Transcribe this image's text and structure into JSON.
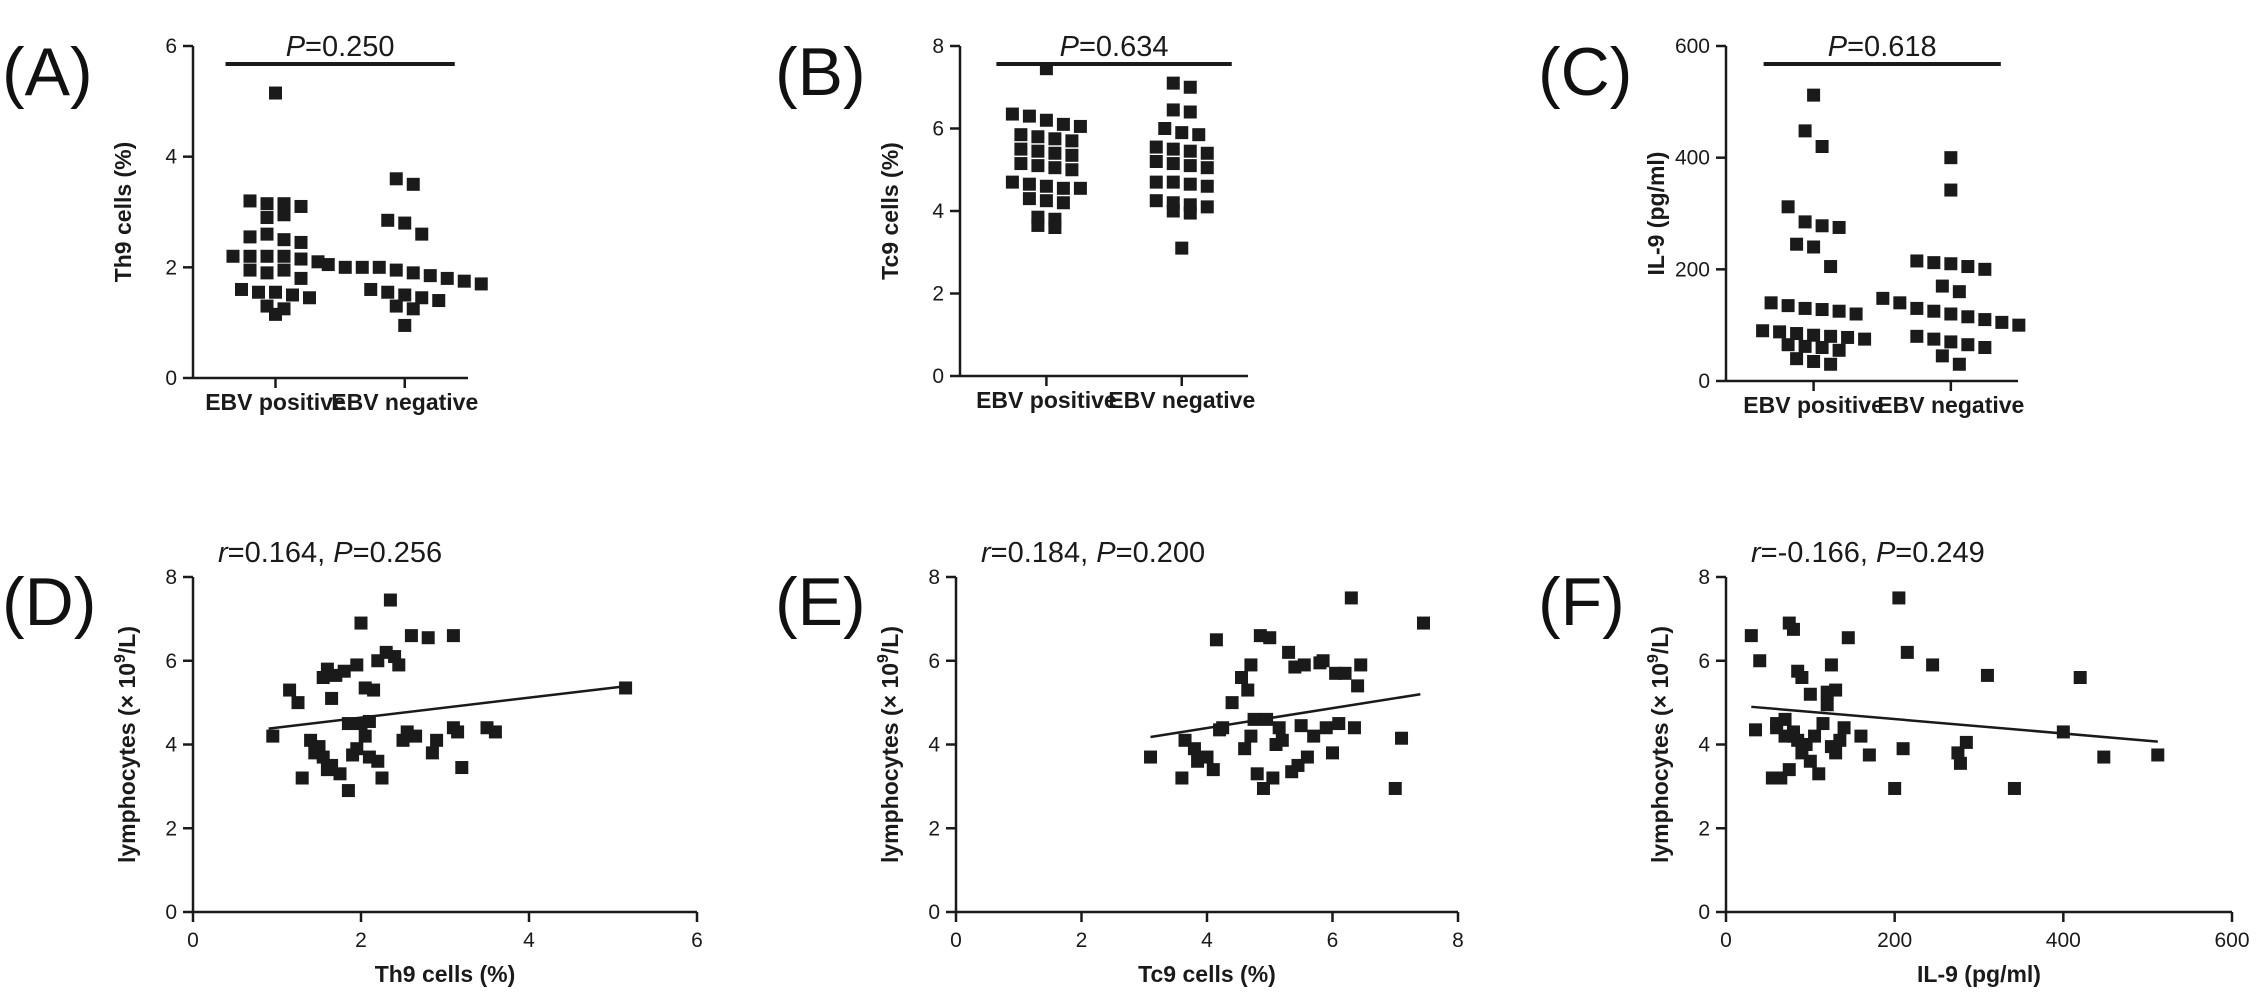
{
  "colors": {
    "marker": "#1a1a1a",
    "axis": "#1a1a1a",
    "background": "#ffffff"
  },
  "panel_letters": [
    "(A)",
    "(B)",
    "(C)",
    "(D)",
    "(E)",
    "(F)"
  ],
  "chart_data": [
    {
      "panel": "(A)",
      "type": "scatter",
      "subtype": "dot-plot",
      "ylabel": "Th9 cells (%)",
      "ylim": [
        0,
        6
      ],
      "yticks": [
        "0",
        "2",
        "4",
        "6"
      ],
      "categories": [
        "EBV positive",
        "EBV negative"
      ],
      "annotation": {
        "p_label": "P",
        "p_value": "=0.250"
      },
      "points": [
        [
          [
            5.15
          ],
          [
            3.2,
            3.15,
            3.15,
            3.1
          ],
          [
            2.9,
            2.95
          ],
          [
            2.55,
            2.6,
            2.5,
            2.45
          ],
          [
            2.2,
            2.2,
            2.2,
            2.2,
            2.15,
            2.1
          ],
          [
            1.95,
            1.9,
            1.95,
            1.8
          ],
          [
            1.6,
            1.55,
            1.55,
            1.5,
            1.45
          ],
          [
            1.3,
            1.25
          ],
          [
            1.15
          ]
        ],
        [
          [
            3.6,
            3.5
          ],
          [
            2.85,
            2.8,
            2.6
          ],
          [
            2.05,
            2.0,
            2.0,
            2.0,
            1.95,
            1.9,
            1.85,
            1.8,
            1.75,
            1.7
          ],
          [
            1.6,
            1.55,
            1.5,
            1.45,
            1.4
          ],
          [
            1.3,
            1.25
          ],
          [
            0.95
          ]
        ]
      ]
    },
    {
      "panel": "(B)",
      "type": "scatter",
      "subtype": "dot-plot",
      "ylabel": "Tc9 cells (%)",
      "ylim": [
        0,
        8
      ],
      "yticks": [
        "0",
        "2",
        "4",
        "6",
        "8"
      ],
      "categories": [
        "EBV positive",
        "EBV negative"
      ],
      "annotation": {
        "p_label": "P",
        "p_value": "=0.634"
      },
      "points": [
        [
          [
            7.45
          ],
          [
            6.35,
            6.3,
            6.2,
            6.1,
            6.05
          ],
          [
            5.85,
            5.8,
            5.75,
            5.7
          ],
          [
            5.5,
            5.45,
            5.4,
            5.35
          ],
          [
            5.15,
            5.1,
            5.05,
            5.0
          ],
          [
            4.7,
            4.65,
            4.6,
            4.55,
            4.55
          ],
          [
            4.3,
            4.25,
            4.2
          ],
          [
            3.85,
            3.8
          ],
          [
            3.65,
            3.6
          ]
        ],
        [
          [
            7.1,
            7.0
          ],
          [
            6.45,
            6.4
          ],
          [
            6.0,
            5.9,
            5.85
          ],
          [
            5.55,
            5.5,
            5.45,
            5.4
          ],
          [
            5.2,
            5.15,
            5.1,
            5.05
          ],
          [
            4.7,
            4.7,
            4.65,
            4.6
          ],
          [
            4.25,
            4.2,
            4.15,
            4.1
          ],
          [
            4.0,
            3.95
          ],
          [
            3.1
          ]
        ]
      ]
    },
    {
      "panel": "(C)",
      "type": "scatter",
      "subtype": "dot-plot",
      "ylabel": "IL-9 (pg/ml)",
      "ylim": [
        0,
        600
      ],
      "yticks": [
        "0",
        "200",
        "400",
        "600"
      ],
      "categories": [
        "EBV positive",
        "EBV negative"
      ],
      "annotation": {
        "p_label": "P",
        "p_value": "=0.618"
      },
      "points": [
        [
          [
            512
          ],
          [
            448,
            420
          ],
          [
            312,
            285,
            278,
            275
          ],
          [
            245,
            240,
            205
          ],
          [
            140,
            135,
            130,
            128,
            125,
            120
          ],
          [
            90,
            88,
            85,
            82,
            80,
            78,
            75
          ],
          [
            65,
            62,
            60,
            55
          ],
          [
            40,
            35,
            30
          ]
        ],
        [
          [
            400
          ],
          [
            342
          ],
          [
            215,
            212,
            210,
            205,
            200
          ],
          [
            170,
            160
          ],
          [
            148,
            140,
            130,
            125,
            120,
            115,
            110,
            105,
            100
          ],
          [
            80,
            75,
            70,
            65,
            60
          ],
          [
            45,
            30
          ]
        ]
      ]
    },
    {
      "panel": "(D)",
      "type": "scatter",
      "with_regression": true,
      "xlabel": "Th9 cells (%)",
      "ylabel_prefix": "lymphocytes (× 10",
      "ylabel_sup": "9",
      "ylabel_suffix": "/L)",
      "xlim": [
        0,
        6
      ],
      "ylim": [
        0,
        8
      ],
      "xticks": [
        "0",
        "2",
        "4",
        "6"
      ],
      "yticks": [
        "0",
        "2",
        "4",
        "6",
        "8"
      ],
      "annotation": {
        "r_label": "r",
        "r_value": "=0.164, ",
        "p_label": "P",
        "p_value": "=0.256"
      },
      "regression": {
        "x": [
          0.9,
          5.1
        ],
        "y": [
          4.38,
          5.38
        ]
      },
      "x": [
        0.95,
        1.15,
        1.25,
        1.3,
        1.4,
        1.45,
        1.5,
        1.55,
        1.55,
        1.6,
        1.6,
        1.65,
        1.65,
        1.7,
        1.75,
        1.8,
        1.85,
        1.85,
        1.9,
        1.95,
        1.95,
        2.0,
        2.0,
        2.05,
        2.05,
        2.1,
        2.1,
        2.15,
        2.2,
        2.2,
        2.25,
        2.3,
        2.35,
        2.4,
        2.45,
        2.5,
        2.55,
        2.6,
        2.65,
        2.8,
        2.85,
        2.9,
        3.1,
        3.1,
        3.15,
        3.2,
        3.5,
        3.6,
        5.15
      ],
      "y": [
        4.2,
        5.3,
        5.0,
        3.2,
        4.1,
        3.8,
        3.95,
        3.7,
        5.6,
        3.4,
        5.8,
        3.5,
        5.1,
        5.65,
        3.3,
        5.75,
        2.9,
        4.5,
        3.75,
        3.9,
        5.9,
        4.5,
        6.9,
        4.2,
        5.35,
        3.7,
        4.55,
        5.3,
        3.6,
        6.0,
        3.2,
        6.2,
        7.45,
        6.1,
        5.9,
        4.1,
        4.3,
        6.6,
        4.2,
        6.55,
        3.8,
        4.1,
        6.6,
        4.4,
        4.3,
        3.45,
        4.4,
        4.3,
        5.35
      ]
    },
    {
      "panel": "(E)",
      "type": "scatter",
      "with_regression": true,
      "xlabel": "Tc9 cells (%)",
      "ylabel_prefix": "lymphocytes (× 10",
      "ylabel_sup": "9",
      "ylabel_suffix": "/L)",
      "xlim": [
        0,
        8
      ],
      "ylim": [
        0,
        8
      ],
      "xticks": [
        "0",
        "2",
        "4",
        "6",
        "8"
      ],
      "yticks": [
        "0",
        "2",
        "4",
        "6",
        "8"
      ],
      "annotation": {
        "r_label": "r",
        "r_value": "=0.184, ",
        "p_label": "P",
        "p_value": "=0.200"
      },
      "regression": {
        "x": [
          3.1,
          7.4
        ],
        "y": [
          4.18,
          5.2
        ]
      },
      "x": [
        3.1,
        3.6,
        3.65,
        3.8,
        3.85,
        4.0,
        4.1,
        4.15,
        4.2,
        4.25,
        4.4,
        4.55,
        4.6,
        4.65,
        4.7,
        4.7,
        4.75,
        4.8,
        4.85,
        4.9,
        4.95,
        5.0,
        5.05,
        5.1,
        5.15,
        5.2,
        5.3,
        5.35,
        5.4,
        5.45,
        5.5,
        5.55,
        5.6,
        5.7,
        5.8,
        5.85,
        5.9,
        6.0,
        6.05,
        6.1,
        6.2,
        6.3,
        6.35,
        6.4,
        6.45,
        7.0,
        7.1,
        7.45
      ],
      "y": [
        3.7,
        3.2,
        4.1,
        3.9,
        3.6,
        3.7,
        3.4,
        6.5,
        4.35,
        4.4,
        5.0,
        5.6,
        3.9,
        5.3,
        4.2,
        5.9,
        4.6,
        3.3,
        6.6,
        2.95,
        4.6,
        6.55,
        3.2,
        4.0,
        4.4,
        4.1,
        6.2,
        3.35,
        5.85,
        3.5,
        4.45,
        5.9,
        3.7,
        4.2,
        5.95,
        6.0,
        4.4,
        3.8,
        5.7,
        4.5,
        5.7,
        7.5,
        4.4,
        5.4,
        5.9,
        2.95,
        4.15,
        6.9
      ]
    },
    {
      "panel": "(F)",
      "type": "scatter",
      "with_regression": true,
      "xlabel": "IL-9 (pg/ml)",
      "ylabel_prefix": "lymphocytes (× 10",
      "ylabel_sup": "9",
      "ylabel_suffix": "/L)",
      "xlim": [
        0,
        600
      ],
      "ylim": [
        0,
        8
      ],
      "xticks": [
        "0",
        "200",
        "400",
        "600"
      ],
      "yticks": [
        "0",
        "2",
        "4",
        "6",
        "8"
      ],
      "annotation": {
        "r_label": "r",
        "r_value": "=-0.166, ",
        "p_label": "P",
        "p_value": "=0.249"
      },
      "regression": {
        "x": [
          30,
          512
        ],
        "y": [
          4.9,
          4.07
        ]
      },
      "x": [
        30,
        35,
        40,
        55,
        60,
        65,
        70,
        75,
        75,
        80,
        80,
        85,
        85,
        90,
        95,
        100,
        105,
        110,
        115,
        120,
        125,
        125,
        130,
        130,
        140,
        145,
        160,
        170,
        200,
        205,
        210,
        215,
        245,
        275,
        278,
        285,
        310,
        342,
        400,
        420,
        448,
        512,
        80,
        120,
        60,
        70,
        90,
        100,
        135
      ],
      "y": [
        6.6,
        4.35,
        6.0,
        3.2,
        4.5,
        3.2,
        4.6,
        6.9,
        3.4,
        6.75,
        4.2,
        5.75,
        4.1,
        5.6,
        4.0,
        5.2,
        4.2,
        3.3,
        4.5,
        5.25,
        3.95,
        5.9,
        3.8,
        5.3,
        4.4,
        6.55,
        4.2,
        3.75,
        2.95,
        7.5,
        3.9,
        6.2,
        5.9,
        3.8,
        3.55,
        4.05,
        5.65,
        2.95,
        4.3,
        5.6,
        3.7,
        3.75,
        4.3,
        4.95,
        4.4,
        4.2,
        3.8,
        3.6,
        4.1
      ]
    }
  ]
}
